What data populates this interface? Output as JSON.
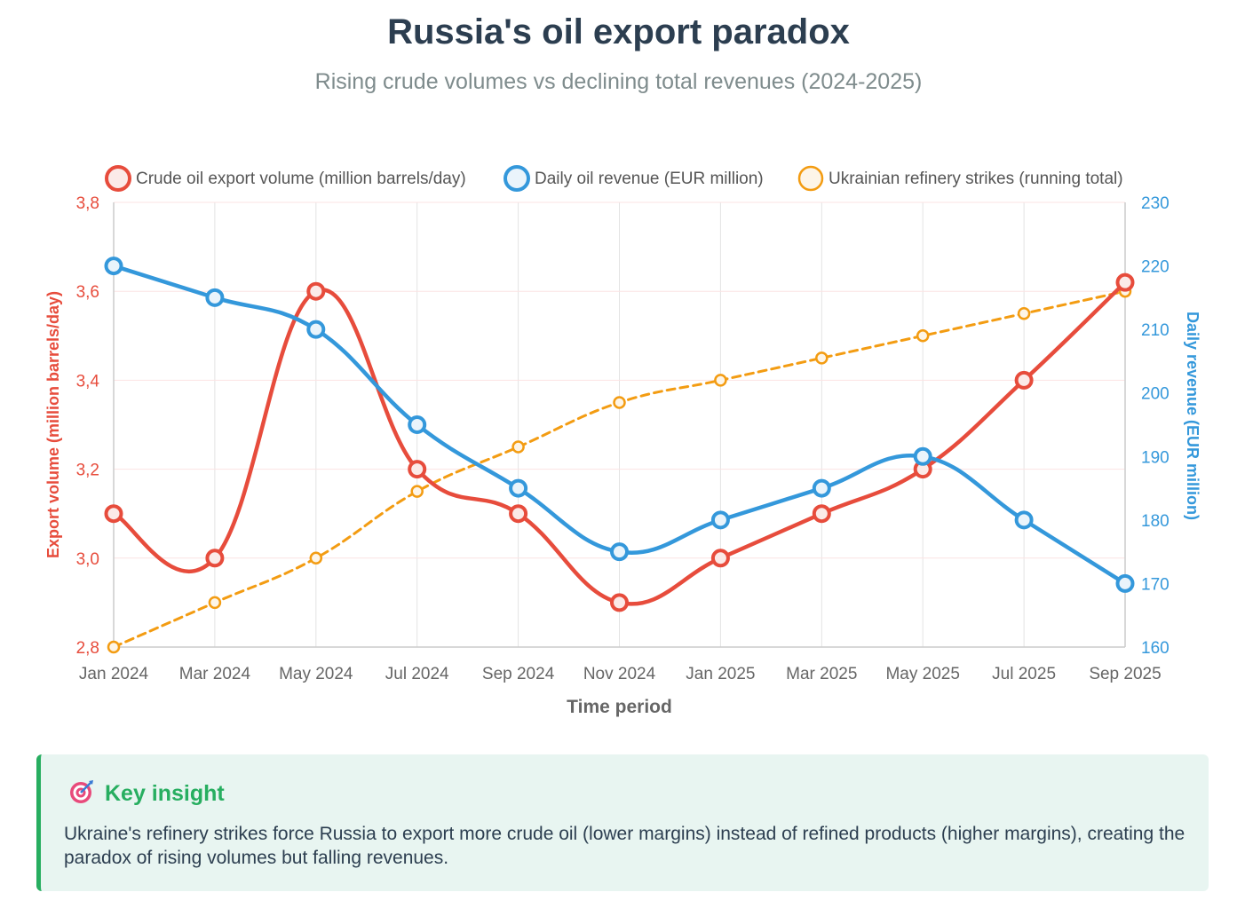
{
  "header": {
    "title": "Russia's oil export paradox",
    "subtitle": "Rising crude volumes vs declining total revenues (2024-2025)"
  },
  "chart_data": {
    "type": "line",
    "x_label": "Time period",
    "y_left_label": "Export volume (million barrels/day)",
    "y_right_label": "Daily revenue (EUR million)",
    "categories": [
      "Jan 2024",
      "Mar 2024",
      "May 2024",
      "Jul 2024",
      "Sep 2024",
      "Nov 2024",
      "Jan 2025",
      "Mar 2025",
      "May 2025",
      "Jul 2025",
      "Sep 2025"
    ],
    "y_left_range": [
      2.8,
      3.8
    ],
    "y_left_ticks": [
      "2,8",
      "3,0",
      "3,2",
      "3,4",
      "3,6",
      "3,8"
    ],
    "y_right_range": [
      160,
      230
    ],
    "y_right_ticks": [
      "160",
      "170",
      "180",
      "190",
      "200",
      "210",
      "220",
      "230"
    ],
    "legend_position": "top",
    "grid": true,
    "series": [
      {
        "name": "Crude oil export volume (million barrels/day)",
        "axis": "left",
        "color": "#e74c3c",
        "style": "solid",
        "values": [
          3.1,
          3.0,
          3.6,
          3.2,
          3.1,
          2.9,
          3.0,
          3.1,
          3.2,
          3.4,
          3.62
        ]
      },
      {
        "name": "Daily oil revenue (EUR million)",
        "axis": "right",
        "color": "#3498db",
        "style": "solid",
        "values": [
          220,
          215,
          210,
          195,
          185,
          175,
          180,
          185,
          190,
          180,
          170
        ]
      },
      {
        "name": "Ukrainian refinery strikes (running total)",
        "axis": "left",
        "color": "#f39c12",
        "style": "dashed",
        "values": [
          2.8,
          2.9,
          3.0,
          3.15,
          3.25,
          3.35,
          3.4,
          3.45,
          3.5,
          3.55,
          3.6
        ]
      }
    ]
  },
  "insight": {
    "icon": "target-icon",
    "title": "Key insight",
    "text": "Ukraine's refinery strikes force Russia to export more crude oil (lower margins) instead of refined products (higher margins), creating the paradox of rising volumes but falling revenues."
  }
}
